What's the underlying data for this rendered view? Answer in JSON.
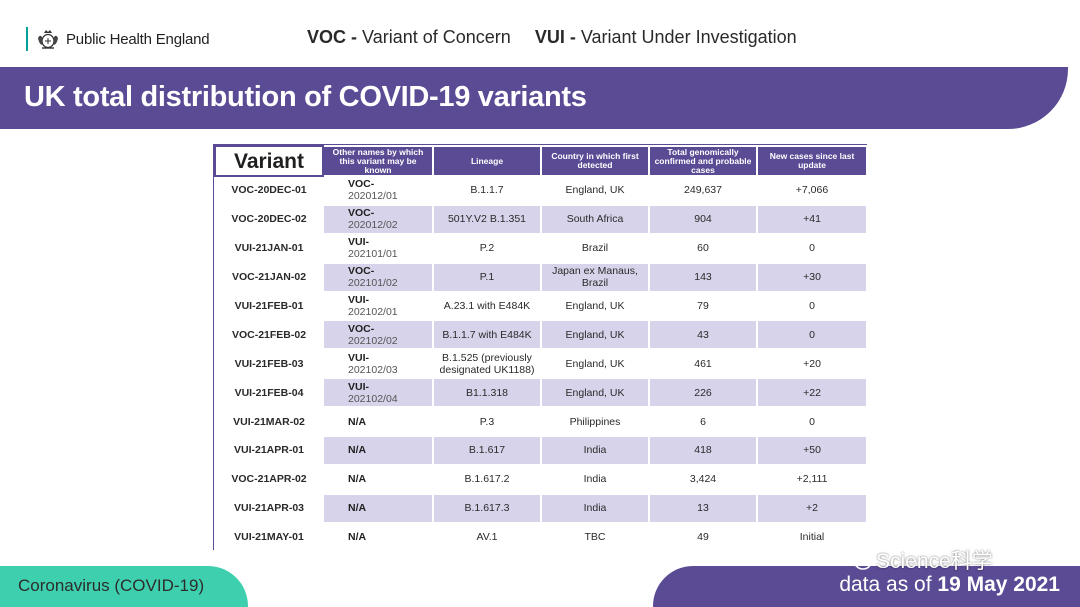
{
  "header": {
    "logo_text": "Public Health England",
    "voc_abbr": "VOC -",
    "voc_text": "Variant of Concern",
    "vui_abbr": "VUI -",
    "vui_text": "Variant Under Investigation"
  },
  "title": "UK total distribution of COVID-19 variants",
  "table": {
    "headers": {
      "variant": "Variant",
      "other_names": "Other names by which this variant may be known",
      "lineage": "Lineage",
      "country": "Country in which first detected",
      "total": "Total genomically confirmed and probable cases",
      "new": "New cases since last update"
    },
    "rows": [
      {
        "variant": "VOC-20DEC-01",
        "other1": "VOC-",
        "other2": "202012/01",
        "lineage": "B.1.1.7",
        "country": "England, UK",
        "total": "249,637",
        "new": "+7,066"
      },
      {
        "variant": "VOC-20DEC-02",
        "other1": "VOC-",
        "other2": "202012/02",
        "lineage": "501Y.V2 B.1.351",
        "country": "South Africa",
        "total": "904",
        "new": "+41"
      },
      {
        "variant": "VUI-21JAN-01",
        "other1": "VUI-",
        "other2": "202101/01",
        "lineage": "P.2",
        "country": "Brazil",
        "total": "60",
        "new": "0"
      },
      {
        "variant": "VOC-21JAN-02",
        "other1": "VOC-",
        "other2": "202101/02",
        "lineage": "P.1",
        "country": "Japan ex Manaus, Brazil",
        "total": "143",
        "new": "+30"
      },
      {
        "variant": "VUI-21FEB-01",
        "other1": "VUI-",
        "other2": "202102/01",
        "lineage": "A.23.1 with E484K",
        "country": "England, UK",
        "total": "79",
        "new": "0"
      },
      {
        "variant": "VOC-21FEB-02",
        "other1": "VOC-",
        "other2": "202102/02",
        "lineage": "B.1.1.7 with E484K",
        "country": "England, UK",
        "total": "43",
        "new": "0"
      },
      {
        "variant": "VUI-21FEB-03",
        "other1": "VUI-",
        "other2": "202102/03",
        "lineage": "B.1.525 (previously designated UK1188)",
        "country": "England, UK",
        "total": "461",
        "new": "+20"
      },
      {
        "variant": "VUI-21FEB-04",
        "other1": "VUI-",
        "other2": "202102/04",
        "lineage": "B1.1.318",
        "country": "England, UK",
        "total": "226",
        "new": "+22"
      },
      {
        "variant": "VUI-21MAR-02",
        "other1": "N/A",
        "other2": "",
        "lineage": "P.3",
        "country": "Philippines",
        "total": "6",
        "new": "0"
      },
      {
        "variant": "VUI-21APR-01",
        "other1": "N/A",
        "other2": "",
        "lineage": "B.1.617",
        "country": "India",
        "total": "418",
        "new": "+50"
      },
      {
        "variant": "VOC-21APR-02",
        "other1": "N/A",
        "other2": "",
        "lineage": "B.1.617.2",
        "country": "India",
        "total": "3,424",
        "new": "+2,111"
      },
      {
        "variant": "VUI-21APR-03",
        "other1": "N/A",
        "other2": "",
        "lineage": "B.1.617.3",
        "country": "India",
        "total": "13",
        "new": "+2"
      },
      {
        "variant": "VUI-21MAY-01",
        "other1": "N/A",
        "other2": "",
        "lineage": "AV.1",
        "country": "TBC",
        "total": "49",
        "new": "Initial"
      }
    ]
  },
  "footer": {
    "left": "Coronavirus (COVID-19)",
    "right_prefix": "data as of ",
    "right_date": "19 May 2021"
  },
  "watermark": "Science科学",
  "colors": {
    "brand_purple": "#5b4a94",
    "row_stripe": "#d7d3ea",
    "teal": "#3ed0ae"
  }
}
